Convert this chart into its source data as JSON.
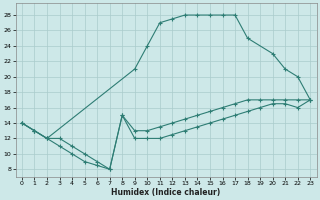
{
  "xlabel": "Humidex (Indice chaleur)",
  "bg_color": "#cde8e8",
  "line_color": "#2e7d74",
  "grid_color": "#aacccc",
  "xlim": [
    -0.5,
    23.5
  ],
  "ylim": [
    7,
    29.5
  ],
  "xticks": [
    0,
    1,
    2,
    3,
    4,
    5,
    6,
    7,
    8,
    9,
    10,
    11,
    12,
    13,
    14,
    15,
    16,
    17,
    18,
    19,
    20,
    21,
    22,
    23
  ],
  "yticks": [
    8,
    10,
    12,
    14,
    16,
    18,
    20,
    22,
    24,
    26,
    28
  ],
  "curve_top": {
    "x": [
      0,
      1,
      2,
      9,
      10,
      11,
      12,
      13,
      14,
      15,
      16,
      17,
      18,
      20,
      21,
      22,
      23
    ],
    "y": [
      14,
      13,
      12,
      21,
      24,
      27,
      27.5,
      28,
      28,
      28,
      28,
      28,
      25,
      23,
      21,
      20,
      17
    ]
  },
  "curve_mid": {
    "x": [
      0,
      1,
      2,
      3,
      4,
      5,
      6,
      7,
      8,
      9,
      10,
      11,
      12,
      13,
      14,
      15,
      16,
      17,
      18,
      19,
      20,
      21,
      22,
      23
    ],
    "y": [
      14,
      13,
      12,
      12,
      11,
      10,
      9,
      8,
      15,
      13,
      13,
      13.5,
      14,
      14.5,
      15,
      15.5,
      16,
      16.5,
      17,
      17,
      17,
      17,
      17,
      17
    ]
  },
  "curve_bot": {
    "x": [
      0,
      1,
      2,
      3,
      4,
      5,
      6,
      7,
      8,
      9,
      10,
      11,
      12,
      13,
      14,
      15,
      16,
      17,
      18,
      19,
      20,
      21,
      22,
      23
    ],
    "y": [
      14,
      13,
      12,
      11,
      10,
      9,
      8.5,
      8,
      15,
      12,
      12,
      12,
      12.5,
      13,
      13.5,
      14,
      14.5,
      15,
      15.5,
      16,
      16.5,
      16.5,
      16,
      17
    ]
  }
}
